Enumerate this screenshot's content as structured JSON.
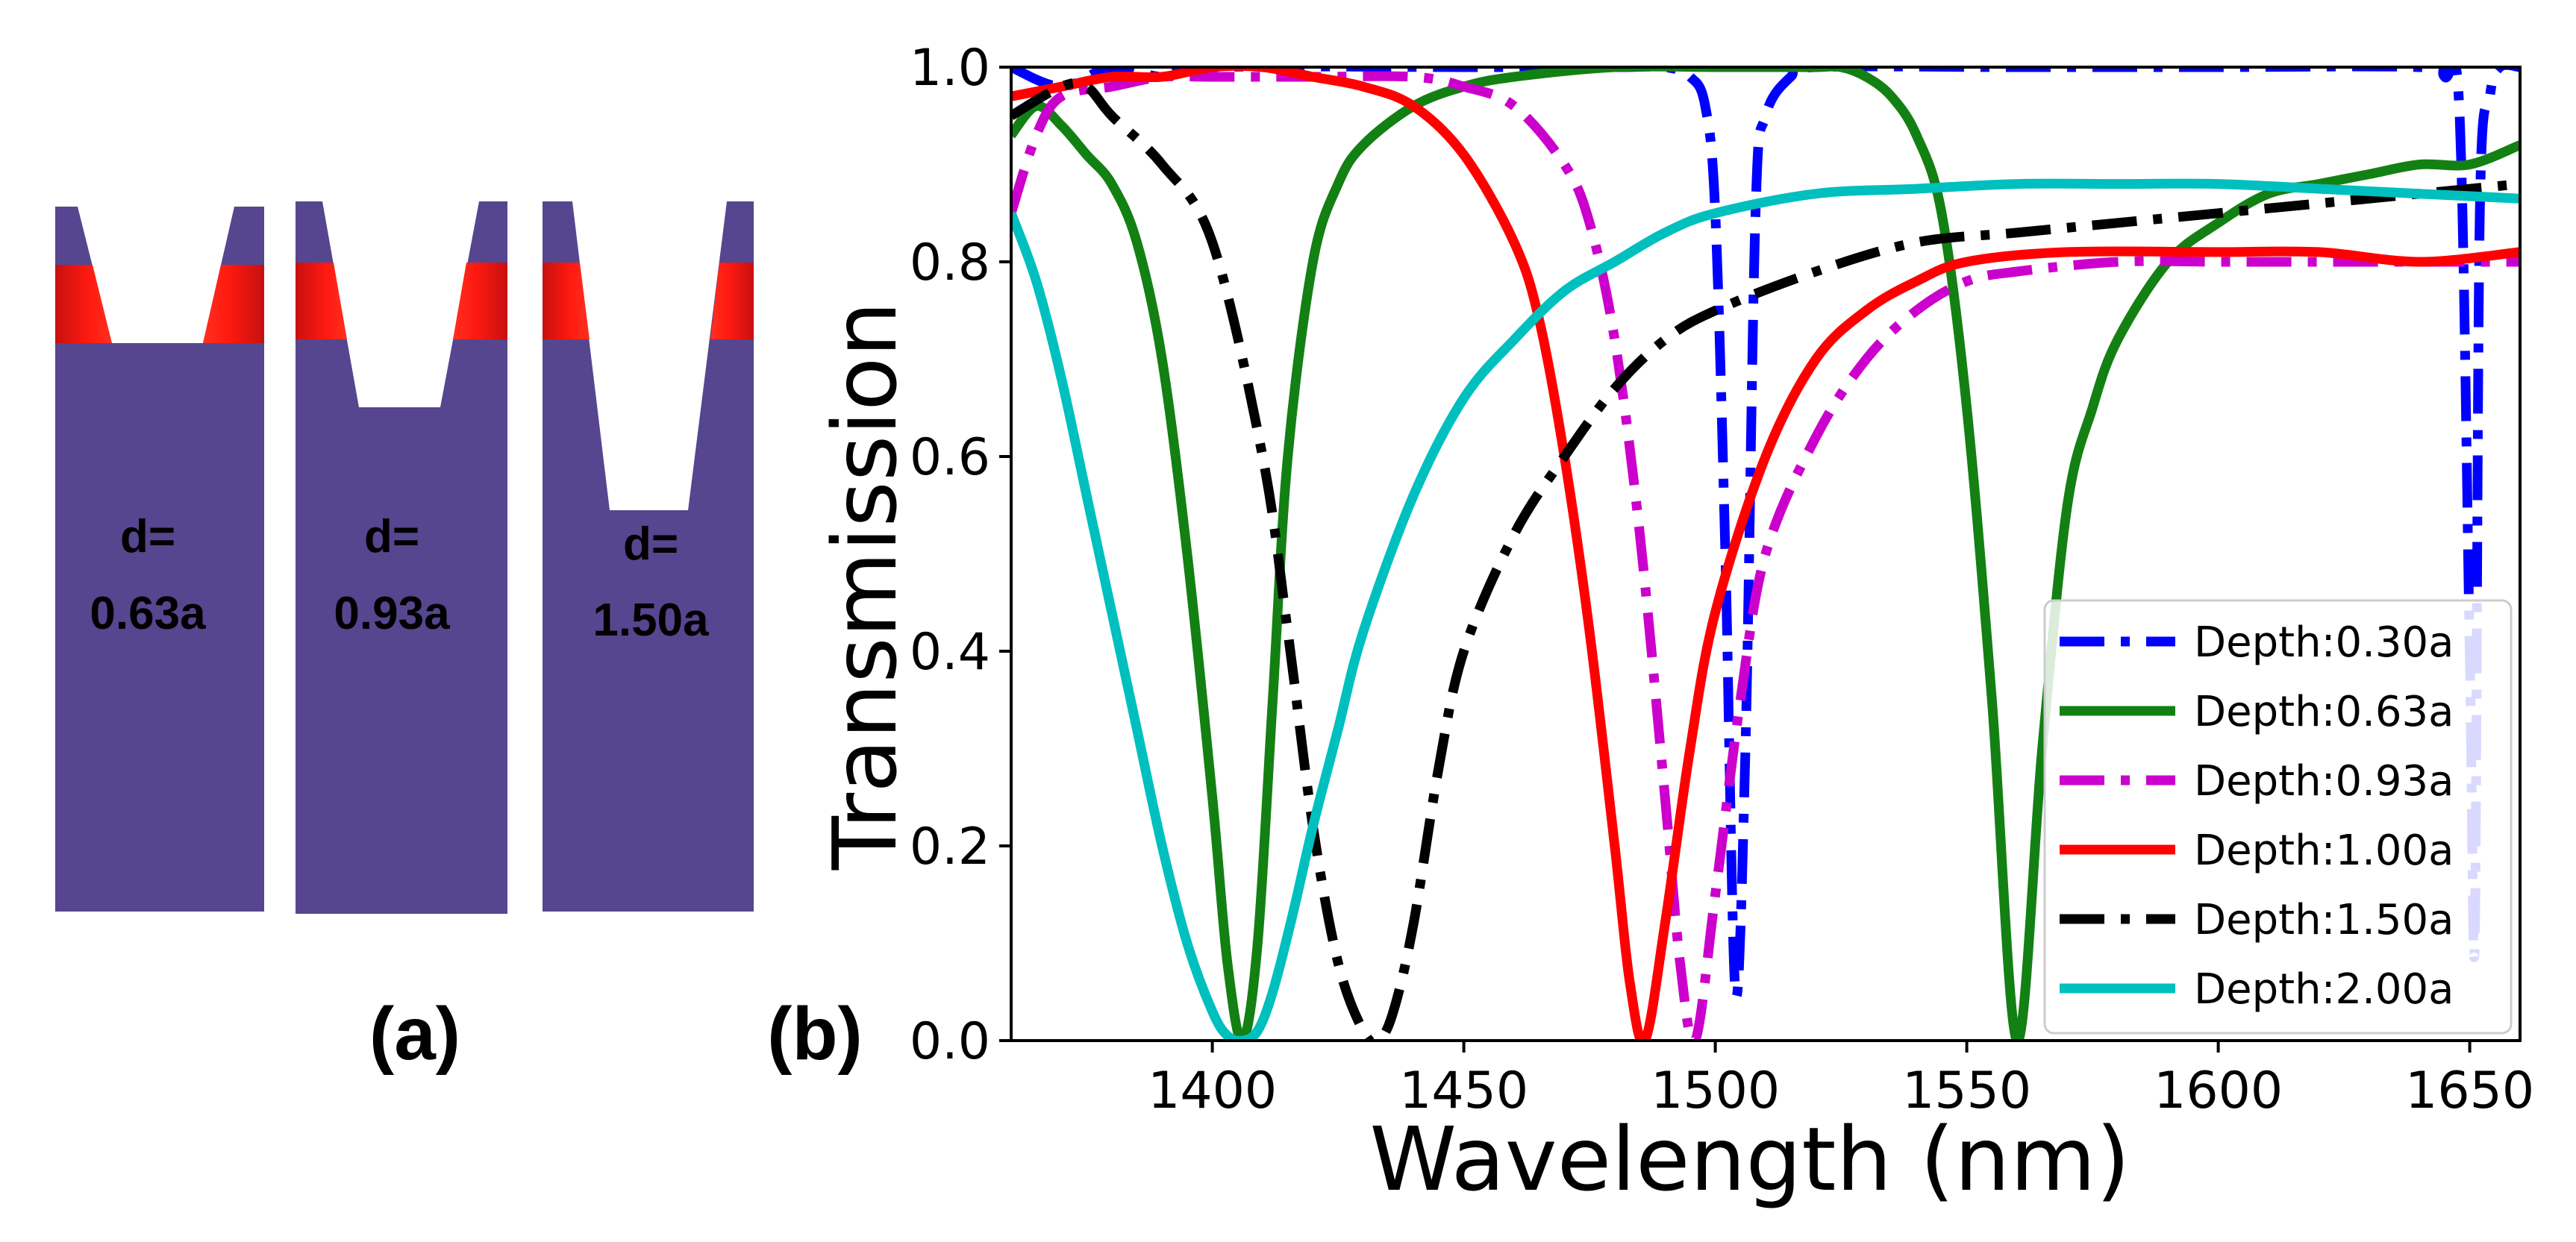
{
  "panels": {
    "a": {
      "label": "(a)",
      "structures": [
        {
          "depth_line1": "d=",
          "depth_line2": "0.63a"
        },
        {
          "depth_line1": "d=",
          "depth_line2": "0.93a"
        },
        {
          "depth_line1": "d=",
          "depth_line2": "1.50a"
        }
      ],
      "colors": {
        "substrate": "#55468f",
        "active_layer": "#e8140f"
      }
    },
    "b": {
      "label": "(b)"
    }
  },
  "chart_data": {
    "type": "line",
    "title": "",
    "xlabel": "Wavelength (nm)",
    "ylabel": "Transmission",
    "xlim": [
      1360,
      1660
    ],
    "ylim": [
      0.0,
      1.0
    ],
    "xticks": [
      "1400",
      "1450",
      "1500",
      "1550",
      "1600",
      "1650"
    ],
    "yticks": [
      "0.0",
      "0.2",
      "0.4",
      "0.6",
      "0.8",
      "1.0"
    ],
    "grid": false,
    "legend_position": "lower-right",
    "series": [
      {
        "name": "Depth:0.30a",
        "color": "#0000ff",
        "dash": "dashdot",
        "x": [
          1360,
          1370,
          1380,
          1390,
          1400,
          1450,
          1480,
          1490,
          1495,
          1498,
          1500,
          1502,
          1504,
          1506,
          1508,
          1510,
          1515,
          1520,
          1560,
          1600,
          1640,
          1645,
          1648,
          1650,
          1651,
          1652,
          1654,
          1656,
          1660
        ],
        "y": [
          1.0,
          0.98,
          1.0,
          0.99,
          1.0,
          1.0,
          1.0,
          1.0,
          0.99,
          0.96,
          0.85,
          0.5,
          0.05,
          0.3,
          0.85,
          0.95,
          0.99,
          1.0,
          1.0,
          1.0,
          1.0,
          0.99,
          0.95,
          0.4,
          0.1,
          0.85,
          0.97,
          1.0,
          1.0
        ]
      },
      {
        "name": "Depth:0.63a",
        "color": "#138013",
        "dash": "solid",
        "x": [
          1360,
          1365,
          1370,
          1375,
          1380,
          1385,
          1390,
          1395,
          1400,
          1403,
          1406,
          1409,
          1412,
          1415,
          1420,
          1425,
          1430,
          1440,
          1450,
          1460,
          1480,
          1500,
          1510,
          1520,
          1525,
          1530,
          1535,
          1540,
          1545,
          1550,
          1555,
          1560,
          1565,
          1570,
          1575,
          1580,
          1590,
          1600,
          1610,
          1620,
          1630,
          1640,
          1650,
          1660
        ],
        "y": [
          0.93,
          0.96,
          0.94,
          0.91,
          0.88,
          0.82,
          0.7,
          0.5,
          0.25,
          0.08,
          0.0,
          0.1,
          0.35,
          0.6,
          0.8,
          0.88,
          0.92,
          0.96,
          0.98,
          0.99,
          1.0,
          1.0,
          1.0,
          1.0,
          1.0,
          0.99,
          0.97,
          0.93,
          0.85,
          0.65,
          0.35,
          0.0,
          0.3,
          0.55,
          0.65,
          0.72,
          0.8,
          0.84,
          0.87,
          0.88,
          0.89,
          0.9,
          0.9,
          0.92
        ]
      },
      {
        "name": "Depth:0.93a",
        "color": "#cc00cc",
        "dash": "dashdot",
        "x": [
          1360,
          1365,
          1370,
          1380,
          1390,
          1400,
          1420,
          1440,
          1450,
          1460,
          1470,
          1475,
          1480,
          1485,
          1490,
          1493,
          1496,
          1500,
          1505,
          1510,
          1520,
          1530,
          1540,
          1550,
          1560,
          1580,
          1600,
          1620,
          1640,
          1660
        ],
        "y": [
          0.85,
          0.93,
          0.97,
          0.98,
          0.99,
          0.99,
          0.99,
          0.99,
          0.98,
          0.96,
          0.9,
          0.84,
          0.72,
          0.52,
          0.25,
          0.08,
          0.0,
          0.15,
          0.35,
          0.5,
          0.62,
          0.7,
          0.75,
          0.78,
          0.79,
          0.8,
          0.8,
          0.8,
          0.8,
          0.8
        ]
      },
      {
        "name": "Depth:1.00a",
        "color": "#ff0000",
        "dash": "solid",
        "x": [
          1360,
          1370,
          1380,
          1390,
          1400,
          1410,
          1420,
          1430,
          1440,
          1450,
          1460,
          1465,
          1470,
          1475,
          1480,
          1483,
          1486,
          1490,
          1495,
          1500,
          1510,
          1520,
          1530,
          1540,
          1550,
          1570,
          1600,
          1620,
          1640,
          1660
        ],
        "y": [
          0.97,
          0.98,
          0.99,
          0.99,
          1.0,
          1.0,
          0.99,
          0.98,
          0.96,
          0.91,
          0.82,
          0.74,
          0.6,
          0.42,
          0.2,
          0.06,
          0.0,
          0.12,
          0.3,
          0.44,
          0.6,
          0.7,
          0.75,
          0.78,
          0.8,
          0.81,
          0.81,
          0.81,
          0.8,
          0.81
        ]
      },
      {
        "name": "Depth:1.50a",
        "color": "#000000",
        "dash": "dashdot",
        "x": [
          1360,
          1370,
          1375,
          1380,
          1390,
          1400,
          1410,
          1415,
          1420,
          1425,
          1430,
          1433,
          1436,
          1440,
          1445,
          1450,
          1460,
          1470,
          1480,
          1490,
          1500,
          1520,
          1540,
          1560,
          1580,
          1600,
          1620,
          1640,
          1660
        ],
        "y": [
          0.95,
          0.98,
          0.98,
          0.95,
          0.9,
          0.82,
          0.6,
          0.42,
          0.22,
          0.08,
          0.01,
          0.0,
          0.03,
          0.12,
          0.28,
          0.4,
          0.52,
          0.6,
          0.67,
          0.72,
          0.75,
          0.79,
          0.82,
          0.83,
          0.84,
          0.85,
          0.86,
          0.87,
          0.88
        ]
      },
      {
        "name": "Depth:2.00a",
        "color": "#00bfbf",
        "dash": "solid",
        "x": [
          1360,
          1365,
          1370,
          1375,
          1380,
          1385,
          1390,
          1395,
          1400,
          1403,
          1406,
          1409,
          1412,
          1416,
          1420,
          1425,
          1430,
          1440,
          1450,
          1460,
          1470,
          1480,
          1490,
          1500,
          1520,
          1540,
          1560,
          1580,
          1600,
          1620,
          1640,
          1660
        ],
        "y": [
          0.85,
          0.78,
          0.68,
          0.56,
          0.44,
          0.32,
          0.2,
          0.1,
          0.03,
          0.005,
          0.0,
          0.01,
          0.05,
          0.13,
          0.22,
          0.32,
          0.42,
          0.56,
          0.66,
          0.72,
          0.77,
          0.8,
          0.83,
          0.85,
          0.87,
          0.875,
          0.88,
          0.88,
          0.88,
          0.875,
          0.87,
          0.865
        ]
      }
    ]
  }
}
